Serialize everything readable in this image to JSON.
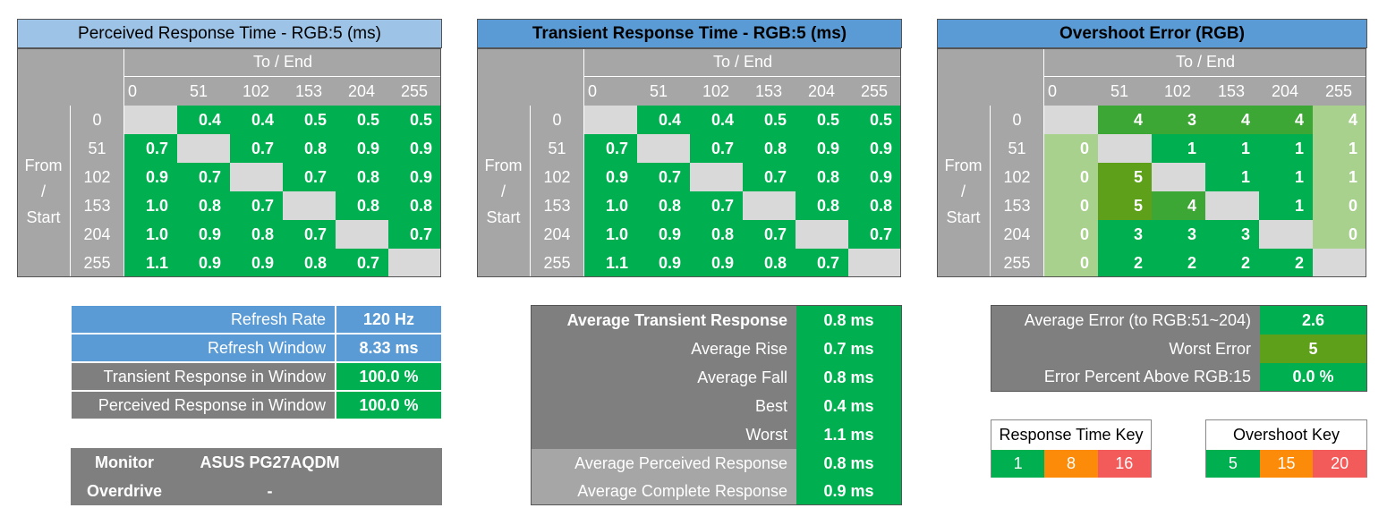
{
  "colors": {
    "green": "#00b050",
    "olive": "#5fa01b",
    "lightgreen": "#a9d18e",
    "blue": "#5b9bd5",
    "lightblue": "#9dc3e6",
    "gray": "#7f7f7f",
    "headgray": "#a6a6a6",
    "diag": "#d9d9d9",
    "orange": "#fd8b0a",
    "red": "#f35a5a"
  },
  "levels": [
    "0",
    "51",
    "102",
    "153",
    "204",
    "255"
  ],
  "to_end": "To / End",
  "from_start": [
    "From",
    "/",
    "Start"
  ],
  "tables": [
    {
      "title": "Perceived Response Time - RGB:5 (ms)",
      "values": [
        [
          "",
          "0.4",
          "0.4",
          "0.5",
          "0.5",
          "0.5"
        ],
        [
          "0.7",
          "",
          "0.7",
          "0.8",
          "0.9",
          "0.9"
        ],
        [
          "0.9",
          "0.7",
          "",
          "0.7",
          "0.8",
          "0.9"
        ],
        [
          "1.0",
          "0.8",
          "0.7",
          "",
          "0.8",
          "0.8"
        ],
        [
          "1.0",
          "0.9",
          "0.8",
          "0.7",
          "",
          "0.7"
        ],
        [
          "1.1",
          "0.9",
          "0.9",
          "0.8",
          "0.7",
          ""
        ]
      ]
    },
    {
      "title": "Transient Response Time - RGB:5 (ms)",
      "values": [
        [
          "",
          "0.4",
          "0.4",
          "0.5",
          "0.5",
          "0.5"
        ],
        [
          "0.7",
          "",
          "0.7",
          "0.8",
          "0.9",
          "0.9"
        ],
        [
          "0.9",
          "0.7",
          "",
          "0.7",
          "0.8",
          "0.9"
        ],
        [
          "1.0",
          "0.8",
          "0.7",
          "",
          "0.8",
          "0.8"
        ],
        [
          "1.0",
          "0.9",
          "0.8",
          "0.7",
          "",
          "0.7"
        ],
        [
          "1.1",
          "0.9",
          "0.9",
          "0.8",
          "0.7",
          ""
        ]
      ]
    },
    {
      "title": "Overshoot Error (RGB)",
      "values": [
        [
          "",
          "4",
          "3",
          "4",
          "4",
          "4"
        ],
        [
          "0",
          "",
          "1",
          "1",
          "1",
          "1"
        ],
        [
          "0",
          "5",
          "",
          "1",
          "1",
          "1"
        ],
        [
          "0",
          "5",
          "4",
          "",
          "1",
          "0"
        ],
        [
          "0",
          "3",
          "3",
          "3",
          "",
          "0"
        ],
        [
          "0",
          "2",
          "2",
          "2",
          "2",
          ""
        ]
      ],
      "shades": [
        [
          "d",
          "m",
          "m",
          "m",
          "m",
          "l"
        ],
        [
          "l",
          "d",
          "g",
          "g",
          "g",
          "l"
        ],
        [
          "l",
          "o",
          "d",
          "g",
          "g",
          "l"
        ],
        [
          "l",
          "o",
          "m",
          "d",
          "g",
          "l"
        ],
        [
          "l",
          "g",
          "g",
          "g",
          "d",
          "l"
        ],
        [
          "l",
          "g",
          "g",
          "g",
          "g",
          "d"
        ]
      ]
    }
  ],
  "refresh": {
    "rows": [
      {
        "label": "Refresh Rate",
        "value": "120 Hz"
      },
      {
        "label": "Refresh Window",
        "value": "8.33 ms"
      },
      {
        "label": "Transient Response in Window",
        "value": "100.0 %"
      },
      {
        "label": "Perceived Response in Window",
        "value": "100.0 %"
      }
    ]
  },
  "monitor": {
    "monitor_label": "Monitor",
    "monitor_value": "ASUS PG27AQDM",
    "overdrive_label": "Overdrive",
    "overdrive_value": "-"
  },
  "transient_summary": {
    "rows": [
      {
        "label": "Average Transient Response",
        "value": "0.8 ms"
      },
      {
        "label": "Average Rise",
        "value": "0.7 ms"
      },
      {
        "label": "Average Fall",
        "value": "0.8 ms"
      },
      {
        "label": "Best",
        "value": "0.4 ms"
      },
      {
        "label": "Worst",
        "value": "1.1 ms"
      },
      {
        "label": "Average Perceived Response",
        "value": "0.8 ms"
      },
      {
        "label": "Average Complete Response",
        "value": "0.9 ms"
      }
    ]
  },
  "error_summary": {
    "rows": [
      {
        "label": "Average Error (to RGB:51~204)",
        "value": "2.6"
      },
      {
        "label": "Worst Error",
        "value": "5"
      },
      {
        "label": "Error Percent Above RGB:15",
        "value": "0.0 %"
      }
    ]
  },
  "response_key": {
    "title": "Response Time Key",
    "values": [
      "1",
      "8",
      "16"
    ]
  },
  "overshoot_key": {
    "title": "Overshoot Key",
    "values": [
      "5",
      "15",
      "20"
    ]
  }
}
